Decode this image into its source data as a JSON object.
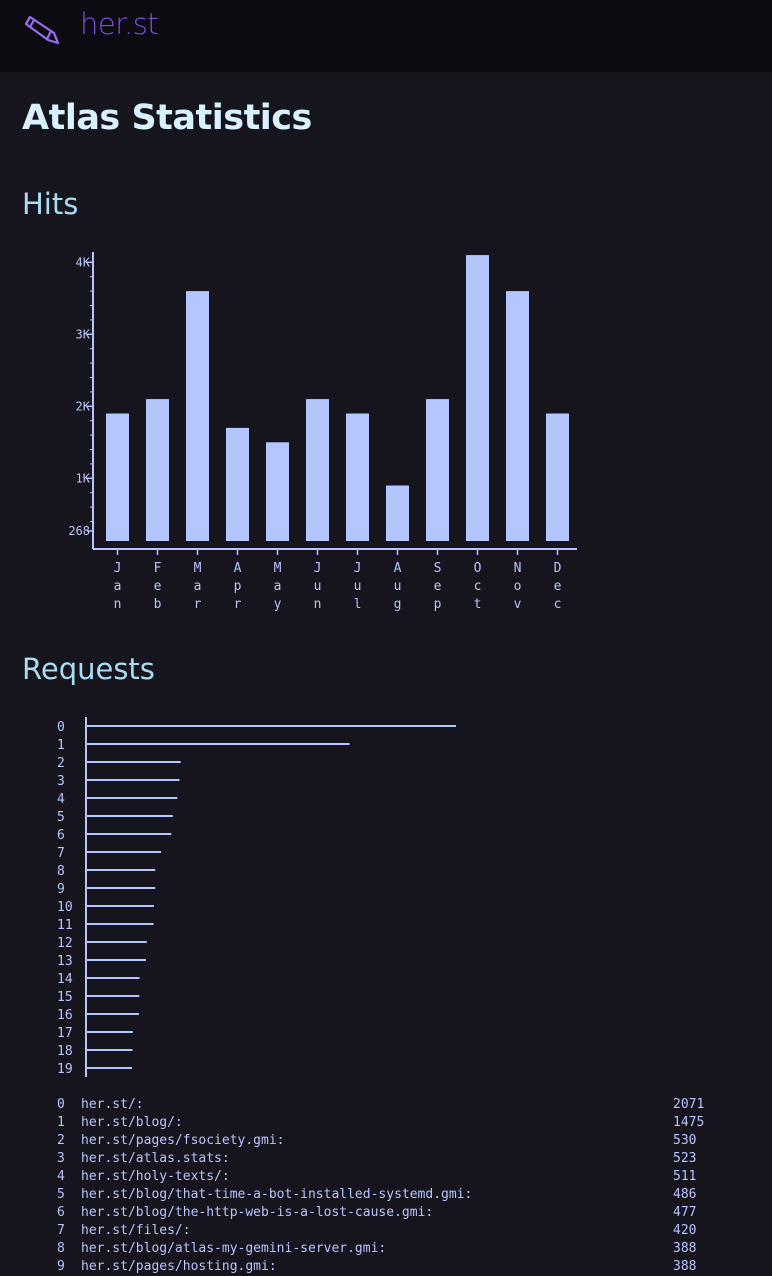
{
  "header": {
    "site_name": "her.st",
    "logo_icon": "pencil-icon"
  },
  "page": {
    "title": "Atlas Statistics"
  },
  "sections": {
    "hits_title": "Hits",
    "requests_title": "Requests"
  },
  "colors": {
    "background": "#16151d",
    "accent": "#7d4fe0",
    "bar": "#b3c6ff",
    "title": "#d7f1ff",
    "section": "#a9dcf2"
  },
  "chart_data": [
    {
      "type": "bar",
      "categories": [
        "Jan",
        "Feb",
        "Mar",
        "Apr",
        "May",
        "Jun",
        "Jul",
        "Aug",
        "Sep",
        "Oct",
        "Nov",
        "Dec"
      ],
      "values": [
        1900,
        2100,
        3600,
        1700,
        1500,
        2100,
        1900,
        900,
        2100,
        4100,
        3600,
        1900
      ],
      "ylim": [
        268,
        4100
      ],
      "yticks": [
        268,
        1000,
        2000,
        3000,
        4000
      ],
      "ytick_labels": [
        "268",
        "1K",
        "2K",
        "3K",
        "4K"
      ],
      "category_labels_vertical": true,
      "grid": false
    },
    {
      "type": "bar",
      "orientation": "horizontal",
      "categories": [
        "0",
        "1",
        "2",
        "3",
        "4",
        "5",
        "6",
        "7",
        "8",
        "9",
        "10",
        "11",
        "12",
        "13",
        "14",
        "15",
        "16",
        "17",
        "18",
        "19"
      ],
      "values": [
        2071,
        1475,
        530,
        523,
        511,
        486,
        477,
        420,
        388,
        388,
        380,
        378,
        340,
        336,
        300,
        298,
        296,
        262,
        260,
        258
      ],
      "grid": false
    }
  ],
  "requests": [
    {
      "index": "0",
      "path": "her.st/:",
      "count": "2071"
    },
    {
      "index": "1",
      "path": "her.st/blog/:",
      "count": "1475"
    },
    {
      "index": "2",
      "path": "her.st/pages/fsociety.gmi:",
      "count": "530"
    },
    {
      "index": "3",
      "path": "her.st/atlas.stats:",
      "count": "523"
    },
    {
      "index": "4",
      "path": "her.st/holy-texts/:",
      "count": "511"
    },
    {
      "index": "5",
      "path": "her.st/blog/that-time-a-bot-installed-systemd.gmi:",
      "count": "486"
    },
    {
      "index": "6",
      "path": "her.st/blog/the-http-web-is-a-lost-cause.gmi:",
      "count": "477"
    },
    {
      "index": "7",
      "path": "her.st/files/:",
      "count": "420"
    },
    {
      "index": "8",
      "path": "her.st/blog/atlas-my-gemini-server.gmi:",
      "count": "388"
    },
    {
      "index": "9",
      "path": "her.st/pages/hosting.gmi:",
      "count": "388"
    }
  ]
}
